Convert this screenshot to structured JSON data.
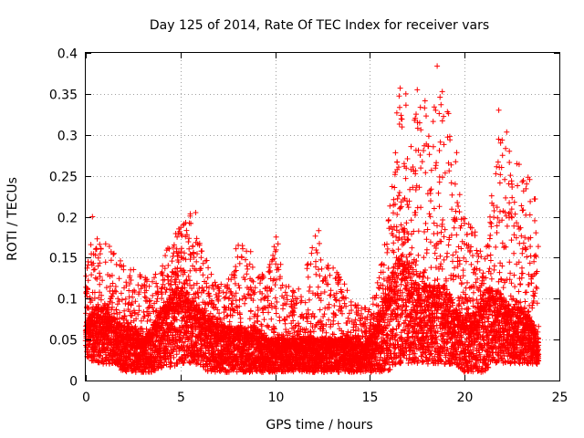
{
  "chart_data": {
    "type": "scatter",
    "title": "Day 125 of 2014, Rate Of TEC Index for receiver vars",
    "xlabel": "GPS time / hours",
    "ylabel": "ROTI / TECUs",
    "xlim": [
      0,
      25
    ],
    "ylim": [
      0,
      0.4
    ],
    "xticks": [
      0,
      5,
      10,
      15,
      20,
      25
    ],
    "xtick_labels": [
      "0",
      "5",
      "10",
      "15",
      "20",
      "25"
    ],
    "yticks": [
      0,
      0.05,
      0.1,
      0.15,
      0.2,
      0.25,
      0.3,
      0.35,
      0.4
    ],
    "ytick_labels": [
      "0",
      "0.05",
      "0.1",
      "0.15",
      "0.2",
      "0.25",
      "0.3",
      "0.35",
      "0.4"
    ],
    "grid": true,
    "marker": "+",
    "series": [
      {
        "name": "vars",
        "color": "#ff0000",
        "x_range": [
          0,
          23.9
        ],
        "sampling_interval_hours": 0.02,
        "envelope": {
          "hours": [
            0,
            0.5,
            1,
            1.5,
            2,
            2.5,
            3,
            3.5,
            4,
            4.5,
            5,
            5.5,
            6,
            6.5,
            7,
            7.5,
            8,
            8.5,
            9,
            9.5,
            10,
            10.5,
            11,
            11.5,
            12,
            12.5,
            13,
            13.5,
            14,
            14.5,
            15,
            15.5,
            16,
            16.5,
            17,
            17.5,
            18,
            18.5,
            19,
            19.5,
            20,
            20.5,
            21,
            21.5,
            22,
            22.5,
            23,
            23.5,
            23.9
          ],
          "lower": [
            0.03,
            0.02,
            0.02,
            0.02,
            0.01,
            0.01,
            0.01,
            0.01,
            0.015,
            0.015,
            0.02,
            0.02,
            0.02,
            0.01,
            0.01,
            0.01,
            0.01,
            0.01,
            0.01,
            0.01,
            0.01,
            0.01,
            0.01,
            0.01,
            0.01,
            0.01,
            0.01,
            0.01,
            0.01,
            0.01,
            0.01,
            0.01,
            0.01,
            0.02,
            0.02,
            0.02,
            0.02,
            0.02,
            0.02,
            0.02,
            0.01,
            0.01,
            0.01,
            0.02,
            0.02,
            0.02,
            0.02,
            0.02,
            0.02
          ],
          "typical": [
            0.06,
            0.07,
            0.07,
            0.06,
            0.05,
            0.05,
            0.04,
            0.05,
            0.07,
            0.08,
            0.09,
            0.08,
            0.07,
            0.06,
            0.05,
            0.05,
            0.05,
            0.05,
            0.05,
            0.04,
            0.04,
            0.04,
            0.04,
            0.04,
            0.04,
            0.04,
            0.04,
            0.04,
            0.04,
            0.04,
            0.04,
            0.06,
            0.09,
            0.12,
            0.11,
            0.09,
            0.09,
            0.09,
            0.09,
            0.07,
            0.06,
            0.06,
            0.08,
            0.09,
            0.08,
            0.07,
            0.07,
            0.06,
            0.05
          ],
          "upper": [
            0.13,
            0.2,
            0.17,
            0.16,
            0.14,
            0.14,
            0.13,
            0.12,
            0.15,
            0.17,
            0.19,
            0.205,
            0.17,
            0.14,
            0.13,
            0.12,
            0.18,
            0.17,
            0.14,
            0.13,
            0.19,
            0.12,
            0.11,
            0.12,
            0.18,
            0.17,
            0.14,
            0.13,
            0.1,
            0.09,
            0.09,
            0.13,
            0.2,
            0.36,
            0.355,
            0.35,
            0.34,
            0.385,
            0.34,
            0.3,
            0.2,
            0.19,
            0.14,
            0.25,
            0.33,
            0.27,
            0.28,
            0.255,
            0.2
          ]
        },
        "notable_points": [
          {
            "x": 0.35,
            "y": 0.2
          },
          {
            "x": 5.8,
            "y": 0.205
          },
          {
            "x": 12.3,
            "y": 0.183
          },
          {
            "x": 16.6,
            "y": 0.357
          },
          {
            "x": 16.9,
            "y": 0.35
          },
          {
            "x": 17.5,
            "y": 0.355
          },
          {
            "x": 18.55,
            "y": 0.384
          },
          {
            "x": 18.7,
            "y": 0.346
          },
          {
            "x": 19.15,
            "y": 0.326
          },
          {
            "x": 21.8,
            "y": 0.33
          },
          {
            "x": 21.9,
            "y": 0.29
          }
        ]
      }
    ]
  }
}
